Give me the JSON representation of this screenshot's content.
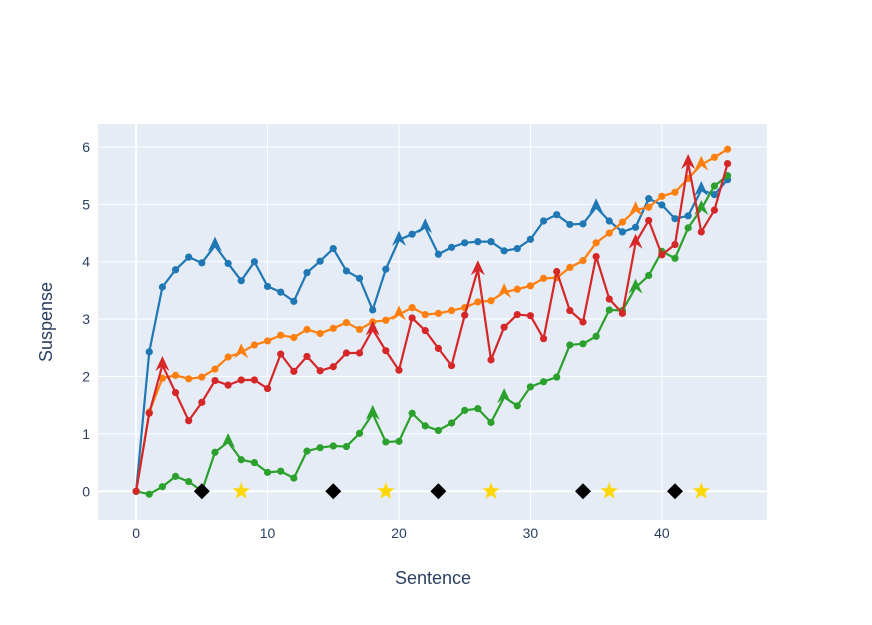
{
  "chart_data": {
    "type": "line",
    "title": "",
    "xlabel": "Sentence",
    "ylabel": "Suspense",
    "xlim": [
      -2.9,
      48.0
    ],
    "ylim": [
      -0.5,
      6.4
    ],
    "x_ticks": [
      0,
      10,
      20,
      30,
      40
    ],
    "y_ticks": [
      0,
      1,
      2,
      3,
      4,
      5,
      6
    ],
    "grid": true,
    "legend": "none",
    "plot_background": "#e5ecf6",
    "grid_color": "#ffffff",
    "series": [
      {
        "color": "#1f77b4",
        "x": [
          0,
          1,
          2,
          3,
          4,
          5,
          6,
          7,
          8,
          9,
          10,
          11,
          12,
          13,
          14,
          15,
          16,
          17,
          18,
          19,
          20,
          21,
          22,
          23,
          24,
          25,
          26,
          27,
          28,
          29,
          30,
          31,
          32,
          33,
          34,
          35,
          36,
          37,
          38,
          39,
          40,
          41,
          42,
          43,
          44,
          45
        ],
        "y": [
          0,
          2.43,
          3.56,
          3.86,
          4.08,
          3.98,
          4.28,
          3.97,
          3.67,
          4.0,
          3.57,
          3.47,
          3.31,
          3.81,
          4.01,
          4.23,
          3.84,
          3.71,
          3.16,
          3.87,
          4.38,
          4.48,
          4.6,
          4.13,
          4.25,
          4.33,
          4.35,
          4.35,
          4.19,
          4.23,
          4.39,
          4.71,
          4.82,
          4.65,
          4.66,
          4.95,
          4.71,
          4.52,
          4.6,
          5.1,
          4.99,
          4.75,
          4.8,
          5.25,
          5.17,
          5.43
        ],
        "triangles": [
          6,
          20,
          22,
          35,
          43
        ]
      },
      {
        "color": "#ff7f0e",
        "x": [
          0,
          1,
          2,
          3,
          4,
          5,
          6,
          7,
          8,
          9,
          10,
          11,
          12,
          13,
          14,
          15,
          16,
          17,
          18,
          19,
          20,
          21,
          22,
          23,
          24,
          25,
          26,
          27,
          28,
          29,
          30,
          31,
          32,
          33,
          34,
          35,
          36,
          37,
          38,
          39,
          40,
          41,
          42,
          43,
          44,
          45
        ],
        "y": [
          0,
          1.38,
          1.97,
          2.02,
          1.96,
          1.99,
          2.13,
          2.34,
          2.42,
          2.55,
          2.62,
          2.72,
          2.68,
          2.82,
          2.75,
          2.84,
          2.94,
          2.82,
          2.95,
          2.98,
          3.08,
          3.2,
          3.08,
          3.1,
          3.15,
          3.2,
          3.3,
          3.32,
          3.47,
          3.52,
          3.58,
          3.71,
          3.72,
          3.9,
          4.02,
          4.33,
          4.5,
          4.69,
          4.9,
          4.95,
          5.14,
          5.21,
          5.45,
          5.69,
          5.82,
          5.96
        ],
        "triangles": [
          8,
          20,
          28,
          38,
          43
        ]
      },
      {
        "color": "#2ca02c",
        "x": [
          0,
          1,
          2,
          3,
          4,
          5,
          6,
          7,
          8,
          9,
          10,
          11,
          12,
          13,
          14,
          15,
          16,
          17,
          18,
          19,
          20,
          21,
          22,
          23,
          24,
          25,
          26,
          27,
          28,
          29,
          30,
          31,
          32,
          33,
          34,
          35,
          36,
          37,
          38,
          39,
          40,
          41,
          42,
          43,
          44,
          45
        ],
        "y": [
          0,
          -0.05,
          0.08,
          0.26,
          0.17,
          0.0,
          0.68,
          0.86,
          0.55,
          0.5,
          0.33,
          0.35,
          0.23,
          0.7,
          0.76,
          0.79,
          0.78,
          1.01,
          1.35,
          0.86,
          0.87,
          1.36,
          1.14,
          1.06,
          1.19,
          1.41,
          1.44,
          1.2,
          1.64,
          1.49,
          1.82,
          1.91,
          1.99,
          2.55,
          2.57,
          2.7,
          3.16,
          3.15,
          3.55,
          3.76,
          4.18,
          4.06,
          4.59,
          4.92,
          5.32,
          5.5
        ],
        "triangles": [
          7,
          18,
          28,
          38,
          43
        ]
      },
      {
        "color": "#d62728",
        "x": [
          0,
          1,
          2,
          3,
          4,
          5,
          6,
          7,
          8,
          9,
          10,
          11,
          12,
          13,
          14,
          15,
          16,
          17,
          18,
          19,
          20,
          21,
          22,
          23,
          24,
          25,
          26,
          27,
          28,
          29,
          30,
          31,
          32,
          33,
          34,
          35,
          36,
          37,
          38,
          39,
          40,
          41,
          42,
          43,
          44,
          45
        ],
        "y": [
          0,
          1.36,
          2.2,
          1.72,
          1.23,
          1.55,
          1.93,
          1.85,
          1.94,
          1.94,
          1.79,
          2.39,
          2.09,
          2.35,
          2.1,
          2.17,
          2.41,
          2.41,
          2.82,
          2.45,
          2.11,
          3.02,
          2.8,
          2.49,
          2.19,
          3.07,
          3.87,
          2.29,
          2.86,
          3.08,
          3.06,
          2.66,
          3.83,
          3.15,
          2.95,
          4.09,
          3.35,
          3.1,
          4.33,
          4.72,
          4.12,
          4.3,
          5.72,
          4.52,
          4.9,
          5.71
        ],
        "triangles": [
          2,
          18,
          26,
          38,
          42
        ]
      }
    ],
    "diamond_markers": {
      "color": "#000000",
      "y": 0,
      "x": [
        5,
        15,
        23,
        34,
        41
      ]
    },
    "star_markers": {
      "color": "#ffd700",
      "y": 0,
      "x": [
        8,
        19,
        27,
        36,
        43
      ]
    }
  }
}
